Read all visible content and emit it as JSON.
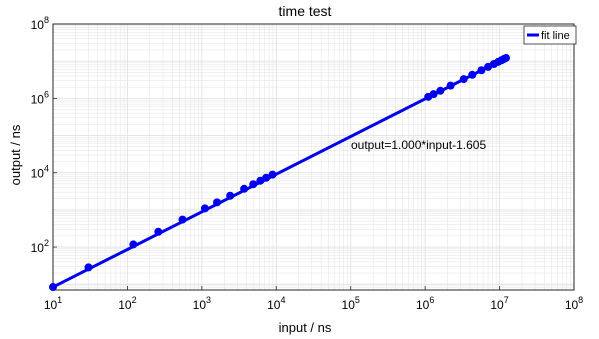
{
  "chart_data": {
    "type": "scatter",
    "title": "time  test",
    "xlabel": "input / ns",
    "ylabel": "output / ns",
    "xscale": "log",
    "yscale": "log",
    "xlim": [
      10,
      100000000
    ],
    "ylim": [
      7,
      100000000
    ],
    "x_ticks": [
      {
        "base": "10",
        "exp": "1"
      },
      {
        "base": "10",
        "exp": "2"
      },
      {
        "base": "10",
        "exp": "3"
      },
      {
        "base": "10",
        "exp": "4"
      },
      {
        "base": "10",
        "exp": "5"
      },
      {
        "base": "10",
        "exp": "6"
      },
      {
        "base": "10",
        "exp": "7"
      },
      {
        "base": "10",
        "exp": "8"
      }
    ],
    "y_ticks": [
      {
        "base": "10",
        "exp": "2"
      },
      {
        "base": "10",
        "exp": "4"
      },
      {
        "base": "10",
        "exp": "6"
      },
      {
        "base": "10",
        "exp": "8"
      }
    ],
    "grid": true,
    "legend": {
      "position": "top-right",
      "entries": [
        "fit line"
      ]
    },
    "annotation": "output=1.000*input-1.605",
    "fit_line": {
      "slope": 1.0,
      "intercept": -1.605,
      "x_range": [
        10,
        12000000
      ]
    },
    "colors": {
      "series": "#0000ee",
      "grid": "#e2e2e2"
    },
    "series": [
      {
        "marker": "circle",
        "points": [
          [
            10,
            8.4
          ],
          [
            30,
            28.4
          ],
          [
            120,
            118
          ],
          [
            260,
            258
          ],
          [
            550,
            548
          ],
          [
            1100,
            1098
          ],
          [
            1600,
            1598
          ],
          [
            2400,
            2398
          ],
          [
            3700,
            3698
          ],
          [
            4900,
            4898
          ],
          [
            6100,
            6098
          ],
          [
            7300,
            7298
          ],
          [
            8900,
            8898
          ],
          [
            1100000,
            1100000
          ],
          [
            1300000,
            1300000
          ],
          [
            1600000,
            1600000
          ],
          [
            2200000,
            2200000
          ],
          [
            3300000,
            3300000
          ],
          [
            4300000,
            4300000
          ],
          [
            5700000,
            5700000
          ],
          [
            7000000,
            7000000
          ],
          [
            8400000,
            8400000
          ],
          [
            9600000,
            9600000
          ],
          [
            10600000,
            10600000
          ],
          [
            11500000,
            11500000
          ],
          [
            12200000,
            12200000
          ]
        ]
      }
    ]
  }
}
